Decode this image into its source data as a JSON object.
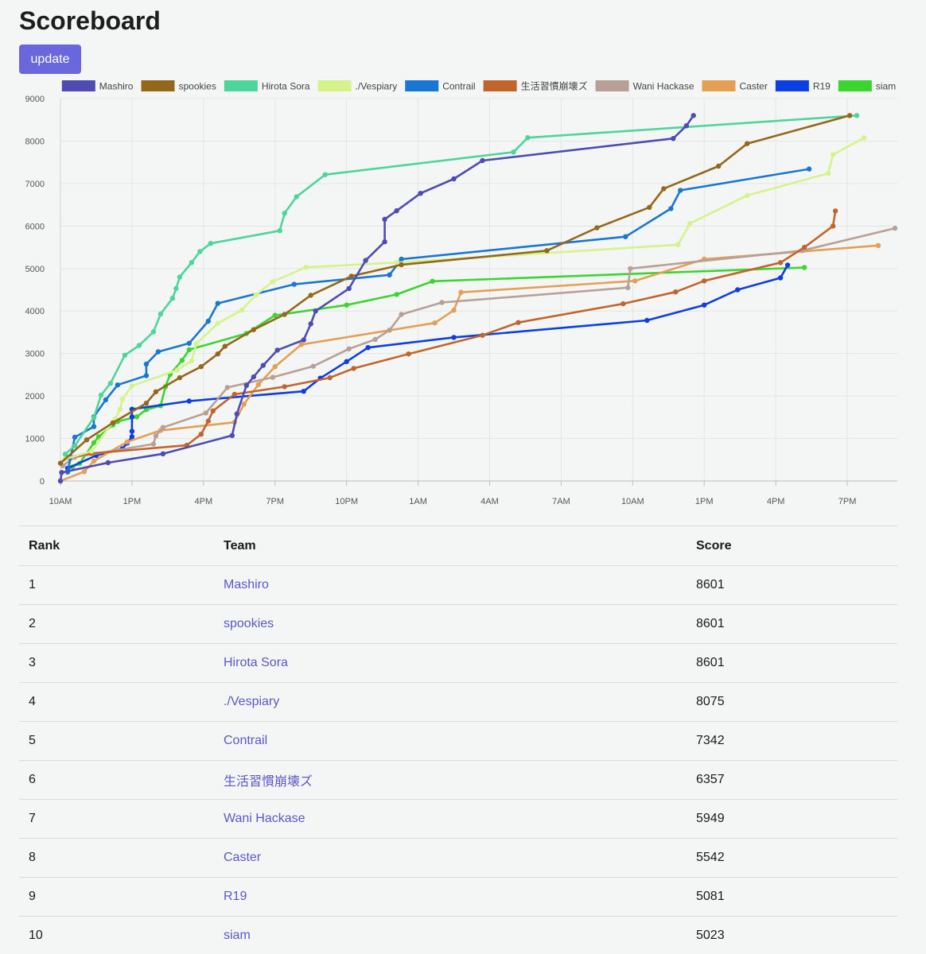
{
  "page": {
    "title": "Scoreboard",
    "update_label": "update"
  },
  "colors": {
    "Mashiro": "#4e4bb3",
    "spookies": "#94681b",
    "Hirota Sora": "#4dd59a",
    "./Vespiary": "#d5f38a",
    "Contrail": "#1976d2",
    "生活習慣崩壊ズ": "#c2652d",
    "Wani Hackase": "#b8a096",
    "Caster": "#e59f55",
    "R19": "#0b3ee3",
    "siam": "#3ad52f"
  },
  "table": {
    "headers": {
      "rank": "Rank",
      "team": "Team",
      "score": "Score"
    },
    "rows": [
      {
        "rank": "1",
        "team": "Mashiro",
        "score": "8601"
      },
      {
        "rank": "2",
        "team": "spookies",
        "score": "8601"
      },
      {
        "rank": "3",
        "team": "Hirota Sora",
        "score": "8601"
      },
      {
        "rank": "4",
        "team": "./Vespiary",
        "score": "8075"
      },
      {
        "rank": "5",
        "team": "Contrail",
        "score": "7342"
      },
      {
        "rank": "6",
        "team": "生活習慣崩壊ズ",
        "score": "6357"
      },
      {
        "rank": "7",
        "team": "Wani Hackase",
        "score": "5949"
      },
      {
        "rank": "8",
        "team": "Caster",
        "score": "5542"
      },
      {
        "rank": "9",
        "team": "R19",
        "score": "5081"
      },
      {
        "rank": "10",
        "team": "siam",
        "score": "5023"
      }
    ]
  },
  "chart_data": {
    "type": "line",
    "x_unit": "hours",
    "x_ticks": [
      {
        "x": 0,
        "label": "10AM"
      },
      {
        "x": 3,
        "label": "1PM"
      },
      {
        "x": 6,
        "label": "4PM"
      },
      {
        "x": 9,
        "label": "7PM"
      },
      {
        "x": 12,
        "label": "10PM"
      },
      {
        "x": 15,
        "label": "1AM"
      },
      {
        "x": 18,
        "label": "4AM"
      },
      {
        "x": 21,
        "label": "7AM"
      },
      {
        "x": 24,
        "label": "10AM"
      },
      {
        "x": 27,
        "label": "1PM"
      },
      {
        "x": 30,
        "label": "4PM"
      },
      {
        "x": 33,
        "label": "7PM"
      }
    ],
    "xlim": [
      0,
      35.1
    ],
    "ylim": [
      0,
      9000
    ],
    "y_ticks": [
      0,
      1000,
      2000,
      3000,
      4000,
      5000,
      6000,
      7000,
      8000,
      9000
    ],
    "grid": true,
    "legend_position": "top",
    "series": [
      {
        "name": "Mashiro",
        "points": [
          [
            0,
            0
          ],
          [
            0.05,
            200
          ],
          [
            2,
            430
          ],
          [
            4.3,
            640
          ],
          [
            7.2,
            1070
          ],
          [
            7.4,
            1580
          ],
          [
            7.8,
            2250
          ],
          [
            8.1,
            2450
          ],
          [
            8.5,
            2720
          ],
          [
            9.1,
            3080
          ],
          [
            10.2,
            3320
          ],
          [
            10.5,
            3700
          ],
          [
            10.7,
            4000
          ],
          [
            12.1,
            4530
          ],
          [
            12.8,
            5190
          ],
          [
            13.6,
            5630
          ],
          [
            13.6,
            6160
          ],
          [
            14.1,
            6360
          ],
          [
            15.1,
            6770
          ],
          [
            16.5,
            7110
          ],
          [
            17.7,
            7540
          ],
          [
            25.7,
            8060
          ],
          [
            26.25,
            8360
          ],
          [
            26.55,
            8601
          ]
        ]
      },
      {
        "name": "spookies",
        "points": [
          [
            0,
            420
          ],
          [
            1.1,
            970
          ],
          [
            2.2,
            1370
          ],
          [
            3.6,
            1830
          ],
          [
            4.0,
            2100
          ],
          [
            5.0,
            2430
          ],
          [
            5.9,
            2690
          ],
          [
            6.6,
            2990
          ],
          [
            6.9,
            3170
          ],
          [
            8.1,
            3560
          ],
          [
            9.4,
            3920
          ],
          [
            10.5,
            4370
          ],
          [
            12.2,
            4820
          ],
          [
            14.3,
            5090
          ],
          [
            20.4,
            5420
          ],
          [
            22.5,
            5960
          ],
          [
            24.7,
            6440
          ],
          [
            25.3,
            6880
          ],
          [
            27.6,
            7410
          ],
          [
            28.8,
            7940
          ],
          [
            33.1,
            8601
          ]
        ]
      },
      {
        "name": "Hirota Sora",
        "points": [
          [
            0.2,
            630
          ],
          [
            0.6,
            830
          ],
          [
            1.4,
            1490
          ],
          [
            1.7,
            2020
          ],
          [
            2.1,
            2300
          ],
          [
            2.7,
            2960
          ],
          [
            3.3,
            3190
          ],
          [
            3.9,
            3510
          ],
          [
            4.2,
            3930
          ],
          [
            4.7,
            4300
          ],
          [
            4.85,
            4530
          ],
          [
            5.0,
            4800
          ],
          [
            5.5,
            5140
          ],
          [
            5.85,
            5400
          ],
          [
            6.3,
            5590
          ],
          [
            9.2,
            5890
          ],
          [
            9.4,
            6300
          ],
          [
            9.9,
            6690
          ],
          [
            11.1,
            7210
          ],
          [
            19.0,
            7740
          ],
          [
            19.6,
            8080
          ],
          [
            33.4,
            8601
          ]
        ]
      },
      {
        "name": "./Vespiary",
        "points": [
          [
            0.2,
            520
          ],
          [
            1.3,
            700
          ],
          [
            2.3,
            1460
          ],
          [
            2.5,
            1690
          ],
          [
            2.6,
            1920
          ],
          [
            3.0,
            2240
          ],
          [
            4.9,
            2610
          ],
          [
            5.5,
            2830
          ],
          [
            5.7,
            3230
          ],
          [
            6.6,
            3710
          ],
          [
            7.6,
            4020
          ],
          [
            8.2,
            4380
          ],
          [
            8.9,
            4690
          ],
          [
            10.3,
            5030
          ],
          [
            14.1,
            5140
          ],
          [
            25.9,
            5560
          ],
          [
            26.4,
            6060
          ],
          [
            28.8,
            6720
          ],
          [
            32.2,
            7240
          ],
          [
            32.4,
            7680
          ],
          [
            33.7,
            8075
          ]
        ]
      },
      {
        "name": "Contrail",
        "points": [
          [
            0.3,
            210
          ],
          [
            0.6,
            1030
          ],
          [
            1.4,
            1280
          ],
          [
            1.4,
            1510
          ],
          [
            1.9,
            1910
          ],
          [
            2.4,
            2260
          ],
          [
            3.6,
            2480
          ],
          [
            3.6,
            2750
          ],
          [
            4.1,
            3040
          ],
          [
            5.4,
            3240
          ],
          [
            6.2,
            3760
          ],
          [
            6.6,
            4180
          ],
          [
            9.8,
            4630
          ],
          [
            13.8,
            4850
          ],
          [
            14.3,
            5220
          ],
          [
            23.7,
            5750
          ],
          [
            25.6,
            6410
          ],
          [
            26.0,
            6840
          ],
          [
            31.4,
            7342
          ]
        ]
      },
      {
        "name": "生活習慣崩壊ズ",
        "points": [
          [
            0.3,
            550
          ],
          [
            1.3,
            650
          ],
          [
            5.3,
            840
          ],
          [
            5.9,
            1100
          ],
          [
            6.2,
            1410
          ],
          [
            6.4,
            1650
          ],
          [
            7.3,
            2040
          ],
          [
            9.4,
            2220
          ],
          [
            11.3,
            2430
          ],
          [
            12.3,
            2650
          ],
          [
            14.6,
            2990
          ],
          [
            17.7,
            3430
          ],
          [
            19.2,
            3730
          ],
          [
            23.6,
            4170
          ],
          [
            25.8,
            4450
          ],
          [
            27.0,
            4710
          ],
          [
            30.2,
            5140
          ],
          [
            31.2,
            5500
          ],
          [
            32.4,
            6000
          ],
          [
            32.5,
            6357
          ]
        ]
      },
      {
        "name": "Wani Hackase",
        "points": [
          [
            0.1,
            360
          ],
          [
            0.6,
            560
          ],
          [
            3.9,
            870
          ],
          [
            4.0,
            1060
          ],
          [
            4.3,
            1260
          ],
          [
            6.1,
            1600
          ],
          [
            7.0,
            2200
          ],
          [
            8.9,
            2440
          ],
          [
            10.6,
            2700
          ],
          [
            12.1,
            3110
          ],
          [
            13.2,
            3330
          ],
          [
            13.8,
            3550
          ],
          [
            14.3,
            3920
          ],
          [
            16.0,
            4200
          ],
          [
            23.8,
            4550
          ],
          [
            23.9,
            5000
          ],
          [
            31.1,
            5420
          ],
          [
            35.0,
            5949
          ]
        ]
      },
      {
        "name": "Caster",
        "points": [
          [
            0,
            0
          ],
          [
            1,
            220
          ],
          [
            1.4,
            470
          ],
          [
            2.8,
            920
          ],
          [
            4.2,
            1190
          ],
          [
            7.3,
            1380
          ],
          [
            7.7,
            1810
          ],
          [
            8.3,
            2270
          ],
          [
            9.0,
            2690
          ],
          [
            10.1,
            3210
          ],
          [
            15.7,
            3720
          ],
          [
            16.5,
            4020
          ],
          [
            16.8,
            4440
          ],
          [
            24.1,
            4710
          ],
          [
            27.0,
            5220
          ],
          [
            34.3,
            5542
          ]
        ]
      },
      {
        "name": "R19",
        "points": [
          [
            0.3,
            300
          ],
          [
            1.5,
            600
          ],
          [
            2.6,
            760
          ],
          [
            2.8,
            890
          ],
          [
            3.0,
            1040
          ],
          [
            3.0,
            1170
          ],
          [
            3.0,
            1510
          ],
          [
            3.0,
            1690
          ],
          [
            5.4,
            1880
          ],
          [
            10.2,
            2110
          ],
          [
            10.9,
            2420
          ],
          [
            12.0,
            2810
          ],
          [
            12.9,
            3140
          ],
          [
            16.5,
            3380
          ],
          [
            24.6,
            3780
          ],
          [
            27.0,
            4140
          ],
          [
            28.4,
            4500
          ],
          [
            30.2,
            4780
          ],
          [
            30.5,
            5081
          ]
        ]
      },
      {
        "name": "siam",
        "points": [
          [
            0.5,
            330
          ],
          [
            0.8,
            410
          ],
          [
            1.4,
            900
          ],
          [
            1.6,
            1040
          ],
          [
            2.2,
            1320
          ],
          [
            2.4,
            1400
          ],
          [
            3.2,
            1510
          ],
          [
            3.6,
            1680
          ],
          [
            4.2,
            1770
          ],
          [
            4.4,
            2220
          ],
          [
            4.6,
            2510
          ],
          [
            5.1,
            2840
          ],
          [
            5.4,
            3090
          ],
          [
            7.8,
            3470
          ],
          [
            9.0,
            3900
          ],
          [
            12.0,
            4140
          ],
          [
            14.1,
            4390
          ],
          [
            15.6,
            4700
          ],
          [
            31.2,
            5023
          ]
        ]
      }
    ]
  }
}
